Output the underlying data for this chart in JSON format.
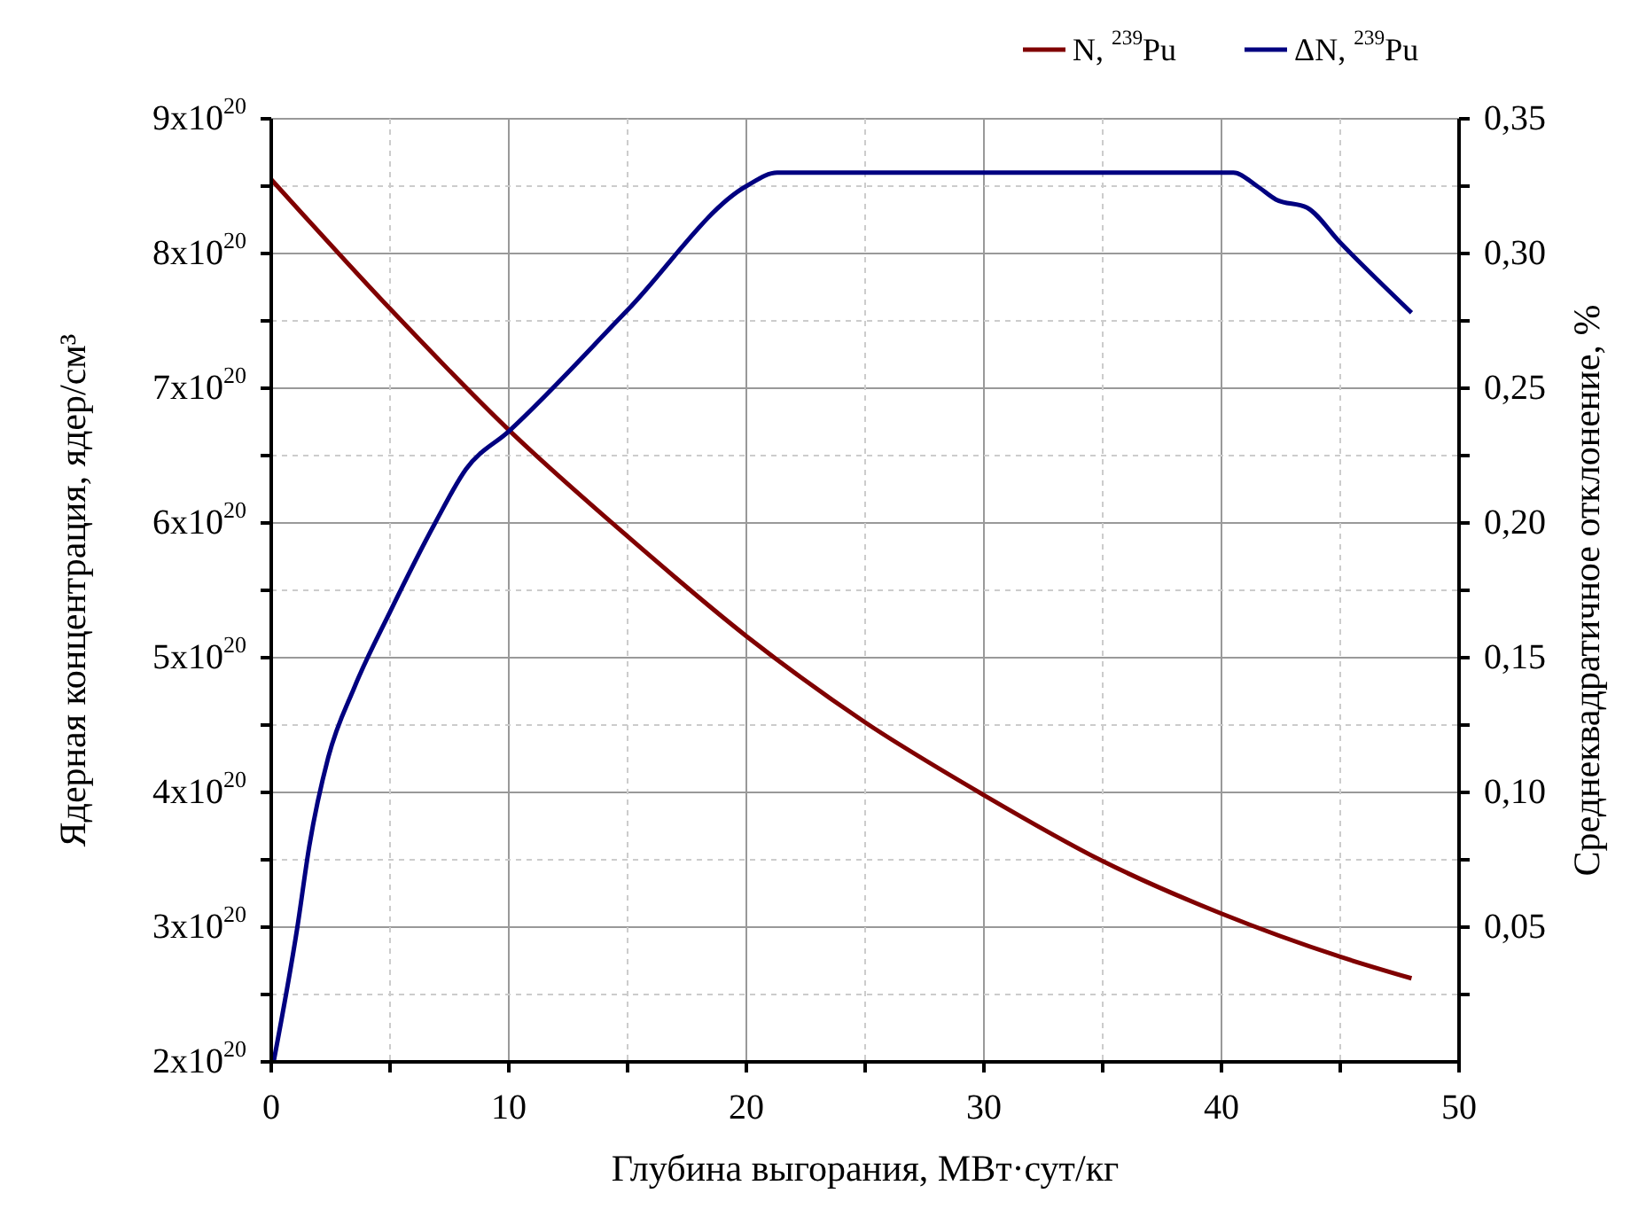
{
  "chart_data": {
    "type": "line",
    "xlabel": "Глубина выгорания, МВт·сут/кг",
    "ylabel": "Ядерная концентрация, ядер/см³",
    "y2label": "Среднеквадратичное отклонение, %",
    "xlim": [
      0,
      50
    ],
    "xticks": [
      0,
      {
        "value": 5,
        "label": null
      },
      10,
      {
        "value": 15,
        "label": null
      },
      20,
      {
        "value": 25,
        "label": null
      },
      30,
      {
        "value": 35,
        "label": null
      },
      40,
      {
        "value": 45,
        "label": null
      },
      50
    ],
    "ylim": [
      2e+20,
      9e+20
    ],
    "yticks": [
      {
        "value": 2e+20,
        "label": "2x10$^{20}$"
      },
      {
        "value": 2.5e+20,
        "label": null
      },
      {
        "value": 3e+20,
        "label": "3x10$^{20}$"
      },
      {
        "value": 3.5e+20,
        "label": null
      },
      {
        "value": 4e+20,
        "label": "4x10$^{20}$"
      },
      {
        "value": 4.5e+20,
        "label": null
      },
      {
        "value": 5e+20,
        "label": "5x10$^{20}$"
      },
      {
        "value": 5.5e+20,
        "label": null
      },
      {
        "value": 6e+20,
        "label": "6x10$^{20}$"
      },
      {
        "value": 6.5e+20,
        "label": null
      },
      {
        "value": 7e+20,
        "label": "7x10$^{20}$"
      },
      {
        "value": 7.5e+20,
        "label": null
      },
      {
        "value": 8e+20,
        "label": "8x10$^{20}$"
      },
      {
        "value": 8.5e+20,
        "label": null
      },
      {
        "value": 9e+20,
        "label": "9x10$^{20}$"
      }
    ],
    "y2lim": [
      0,
      0.35
    ],
    "y2ticks": [
      {
        "value": 0.025,
        "label": null
      },
      {
        "value": 0.05,
        "label": "0,05"
      },
      {
        "value": 0.075,
        "label": null
      },
      {
        "value": 0.1,
        "label": "0,10"
      },
      {
        "value": 0.125,
        "label": null
      },
      {
        "value": 0.15,
        "label": "0,15"
      },
      {
        "value": 0.175,
        "label": null
      },
      {
        "value": 0.2,
        "label": "0,20"
      },
      {
        "value": 0.225,
        "label": null
      },
      {
        "value": 0.25,
        "label": "0,25"
      },
      {
        "value": 0.275,
        "label": null
      },
      {
        "value": 0.3,
        "label": "0,30"
      },
      {
        "value": 0.325,
        "label": null
      },
      {
        "value": 0.35,
        "label": "0,35"
      }
    ],
    "grid": true,
    "legend": "top right",
    "marker": "none",
    "line_style": "solid",
    "series": [
      {
        "name": "N, $^{239}$Pu",
        "color": "#800000",
        "x": [
          0,
          5,
          10,
          15,
          20,
          25,
          30,
          35,
          40,
          45,
          48
        ],
        "values": [
          8.55e+20,
          7.59e+20,
          6.69e+20,
          5.9e+20,
          5.16e+20,
          4.52e+20,
          3.98e+20,
          3.49e+20,
          3.1e+20,
          2.78e+20,
          2.62e+20
        ]
      },
      {
        "name": "ΔN, $^{239}$Pu",
        "color": "#000080",
        "axis": "y2",
        "x": [
          0.1,
          1.1,
          1.6,
          2.4,
          3.5,
          5,
          6.9,
          8.2,
          10,
          15,
          20,
          21.3,
          30,
          40.5,
          41.5,
          42.3,
          43.6,
          45,
          48
        ],
        "values": [
          0.0,
          0.05,
          0.08,
          0.113,
          0.139,
          0.167,
          0.2,
          0.22,
          0.234,
          0.279,
          0.325,
          0.33,
          0.33,
          0.33,
          0.325,
          0.32,
          0.317,
          0.304,
          0.278
        ]
      }
    ]
  }
}
